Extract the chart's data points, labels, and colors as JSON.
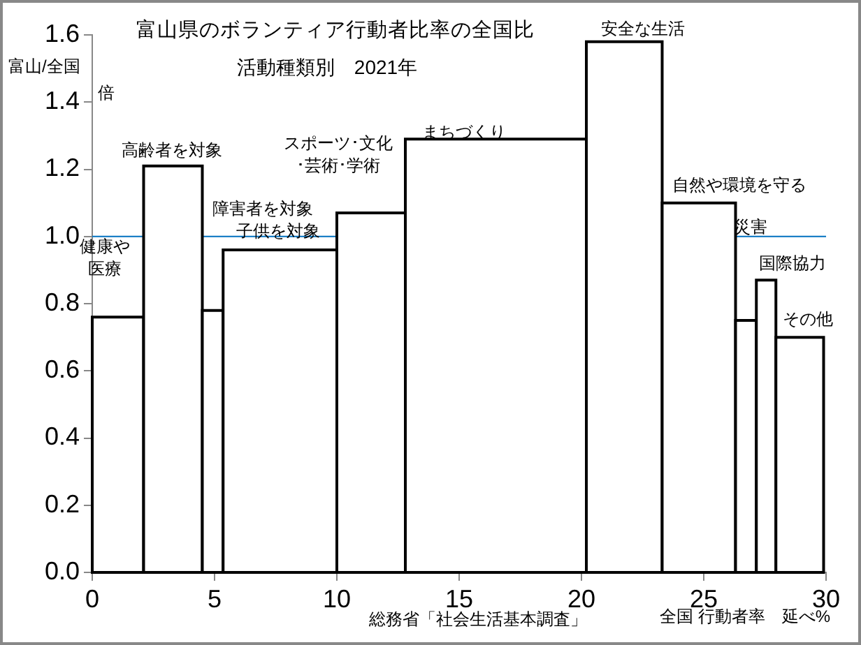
{
  "chart_data": {
    "type": "histogram",
    "title": "富山県のボランティア行動者比率の全国比",
    "subtitle": "活動種類別　2021年",
    "xlabel": "全国 行動者率　延べ%",
    "ylabel": "富山/全国倍",
    "bins": [
      0,
      2.1,
      4.5,
      5.35,
      10,
      12.8,
      20.2,
      23.3,
      26.3,
      27.15,
      27.95,
      29.9
    ],
    "values": [
      0.76,
      1.21,
      0.78,
      0.96,
      1.07,
      1.29,
      1.58,
      1.1,
      0.75,
      0.87,
      0.7
    ],
    "color": "#ffffff",
    "xlim": [
      0,
      30
    ],
    "xticks": [
      0,
      5,
      10,
      15,
      20,
      25,
      30
    ],
    "ylim": [
      0,
      1.6
    ],
    "yticks": [
      {
        "value": 0,
        "label": "0.0"
      },
      {
        "value": 0.2,
        "label": "0.2"
      },
      {
        "value": 0.4,
        "label": "0.4"
      },
      {
        "value": 0.6,
        "label": "0.6"
      },
      {
        "value": 0.8,
        "label": "0.8"
      },
      {
        "value": 1,
        "label": "1.0"
      },
      {
        "value": 1.2,
        "label": "1.2"
      },
      {
        "value": 1.4,
        "label": "1.4"
      },
      {
        "value": 1.6,
        "label": "1.6"
      }
    ],
    "ref_lines": [
      {
        "axis": "y",
        "value": 1,
        "color": "#0070c0"
      }
    ],
    "annotations": [
      "健康や医療",
      "高齢者を対象",
      "障害者を対象",
      "子供を対象",
      "スポーツ･文化･芸術･学術",
      "まちづくり",
      "安全な生活",
      "自然や環境を守る",
      "災害",
      "国際協力",
      "その他",
      "総務省「社会生活基本調査」"
    ]
  }
}
